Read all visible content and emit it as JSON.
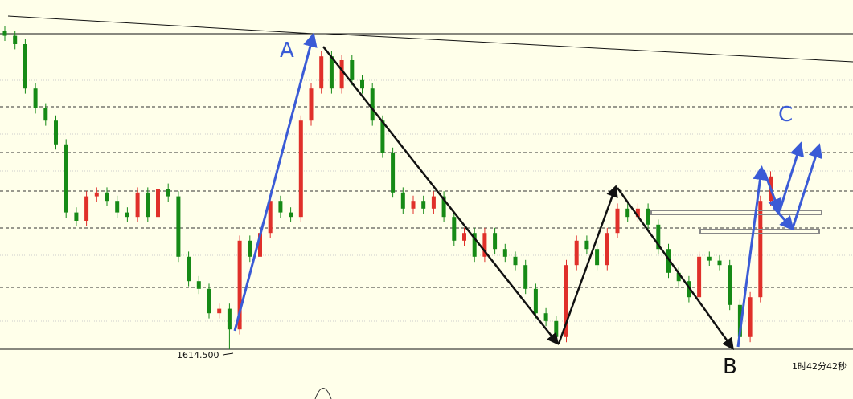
{
  "chart_data": {
    "type": "candlestick",
    "up_color": "#e0302a",
    "down_color": "#168a16",
    "ylim": [
      1610.75,
      1668.875
    ],
    "open": [
      1664.0,
      1663.3,
      1662.0,
      1655.1,
      1652.0,
      1650.1,
      1646.4,
      1635.8,
      1634.5,
      1638.3,
      1638.9,
      1637.6,
      1635.8,
      1635.1,
      1638.9,
      1635.1,
      1639.5,
      1638.3,
      1628.9,
      1625.1,
      1623.9,
      1620.1,
      1620.8,
      1617.6,
      1631.4,
      1628.9,
      1632.6,
      1637.6,
      1635.8,
      1635.1,
      1650.1,
      1655.1,
      1660.1,
      1655.1,
      1659.5,
      1656.4,
      1655.1,
      1650.1,
      1645.1,
      1638.9,
      1636.4,
      1637.6,
      1636.4,
      1638.3,
      1635.1,
      1631.4,
      1632.6,
      1628.9,
      1632.6,
      1630.1,
      1628.9,
      1627.6,
      1623.9,
      1620.1,
      1618.9,
      1616.4,
      1627.6,
      1631.4,
      1630.1,
      1627.6,
      1632.6,
      1636.4,
      1635.1,
      1636.4,
      1633.9,
      1630.1,
      1626.4,
      1625.1,
      1622.6,
      1628.9,
      1628.3,
      1627.6,
      1621.4,
      1616.4,
      1622.6,
      1637.6
    ],
    "high": [
      1664.8,
      1664.1,
      1662.8,
      1655.9,
      1652.8,
      1650.9,
      1647.2,
      1636.6,
      1639.1,
      1639.7,
      1639.7,
      1638.4,
      1636.6,
      1639.7,
      1639.7,
      1640.3,
      1640.3,
      1639.1,
      1629.7,
      1625.9,
      1624.7,
      1621.6,
      1621.6,
      1632.2,
      1632.2,
      1633.4,
      1638.4,
      1638.4,
      1636.6,
      1650.9,
      1655.9,
      1660.9,
      1660.9,
      1660.3,
      1660.3,
      1657.2,
      1655.9,
      1650.9,
      1645.9,
      1639.7,
      1638.4,
      1638.4,
      1639.1,
      1639.1,
      1635.9,
      1633.4,
      1633.4,
      1633.4,
      1633.4,
      1630.9,
      1629.7,
      1628.4,
      1624.7,
      1620.9,
      1619.7,
      1628.4,
      1632.2,
      1632.2,
      1630.9,
      1633.4,
      1637.2,
      1637.2,
      1637.2,
      1637.2,
      1634.7,
      1630.9,
      1627.2,
      1625.9,
      1629.7,
      1629.7,
      1629.1,
      1628.4,
      1622.2,
      1623.4,
      1638.4,
      1642.2
    ],
    "low": [
      1662.5,
      1661.2,
      1654.3,
      1651.2,
      1649.3,
      1645.6,
      1635.0,
      1633.7,
      1633.7,
      1637.5,
      1636.8,
      1635.0,
      1634.3,
      1634.3,
      1634.3,
      1634.3,
      1637.5,
      1628.1,
      1624.3,
      1623.1,
      1619.3,
      1619.3,
      1614.5,
      1616.8,
      1628.1,
      1628.1,
      1631.8,
      1635.0,
      1634.3,
      1634.3,
      1649.3,
      1654.3,
      1654.3,
      1654.3,
      1655.6,
      1654.3,
      1649.3,
      1644.3,
      1638.1,
      1635.6,
      1635.6,
      1635.6,
      1635.6,
      1634.3,
      1630.6,
      1630.6,
      1628.1,
      1628.1,
      1629.3,
      1628.1,
      1626.8,
      1623.1,
      1619.3,
      1618.1,
      1615.6,
      1615.6,
      1626.8,
      1629.3,
      1626.8,
      1626.8,
      1631.8,
      1634.3,
      1634.3,
      1633.1,
      1629.3,
      1625.6,
      1624.3,
      1621.8,
      1621.8,
      1627.5,
      1626.8,
      1620.6,
      1614.9,
      1615.6,
      1621.8,
      1636.8
    ],
    "close": [
      1663.3,
      1662.0,
      1655.1,
      1652.0,
      1650.1,
      1646.4,
      1635.8,
      1634.5,
      1638.3,
      1638.9,
      1637.6,
      1635.8,
      1635.1,
      1638.9,
      1635.1,
      1639.5,
      1638.3,
      1628.9,
      1625.1,
      1623.9,
      1620.1,
      1620.8,
      1617.6,
      1631.4,
      1628.9,
      1632.6,
      1637.6,
      1635.8,
      1635.1,
      1650.1,
      1655.1,
      1660.1,
      1655.1,
      1659.5,
      1656.4,
      1655.1,
      1650.1,
      1645.1,
      1638.9,
      1636.4,
      1637.6,
      1636.4,
      1638.3,
      1635.1,
      1631.4,
      1632.6,
      1628.9,
      1632.6,
      1630.1,
      1628.9,
      1627.6,
      1623.9,
      1620.1,
      1618.9,
      1616.4,
      1627.6,
      1631.4,
      1630.1,
      1627.6,
      1632.6,
      1636.4,
      1635.1,
      1636.4,
      1633.9,
      1630.1,
      1626.4,
      1625.1,
      1622.6,
      1628.9,
      1628.3,
      1627.6,
      1621.4,
      1616.4,
      1622.6,
      1637.6,
      1641.4
    ],
    "price_label": {
      "value": 1614.5,
      "label": "1614.500"
    },
    "annotations": [
      "A",
      "B",
      "C"
    ],
    "countdown": "1时42分42秒"
  }
}
